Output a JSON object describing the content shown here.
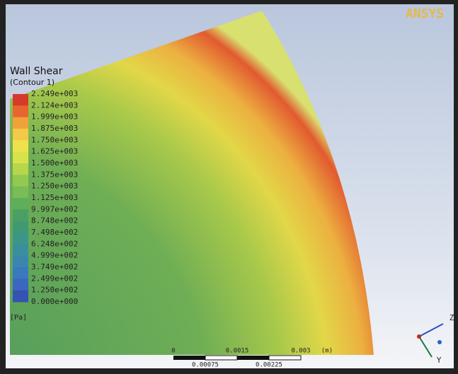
{
  "logo": "ANSYS",
  "legend": {
    "title": "Wall Shear",
    "subtitle": "(Contour 1)",
    "labels": [
      "2.249e+003",
      "2.124e+003",
      "1.999e+003",
      "1.875e+003",
      "1.750e+003",
      "1.625e+003",
      "1.500e+003",
      "1.375e+003",
      "1.250e+003",
      "1.125e+003",
      "9.997e+002",
      "8.748e+002",
      "7.498e+002",
      "6.248e+002",
      "4.999e+002",
      "3.749e+002",
      "2.499e+002",
      "1.250e+002",
      "0.000e+000"
    ],
    "unit": "[Pa]"
  },
  "scale_bar": {
    "top_labels": [
      "0",
      "0.0015",
      "0.003"
    ],
    "unit": "(m)",
    "bottom_labels": [
      "0.00075",
      "0.00225"
    ]
  },
  "axes_triad": {
    "labels": [
      "Z",
      "Y"
    ]
  }
}
